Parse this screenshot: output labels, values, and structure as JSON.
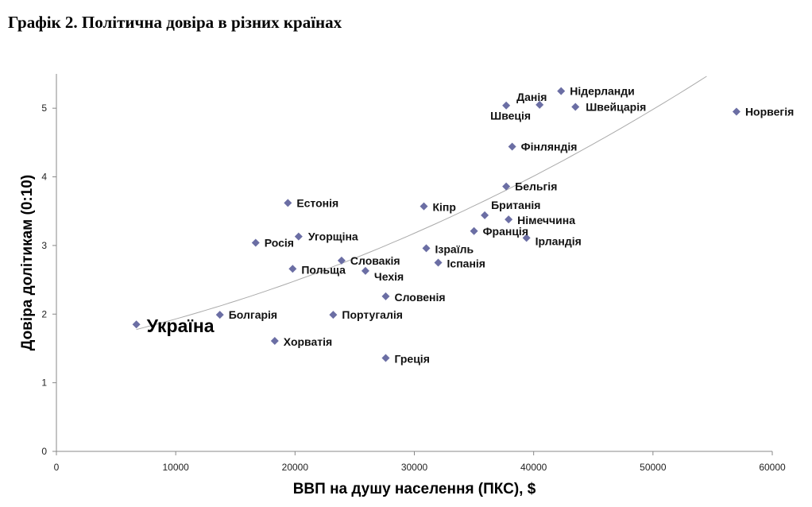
{
  "title": "Графік 2. Політична довіра в різних країнах",
  "chart_data": {
    "type": "scatter",
    "xlabel": "ВВП на душу населення (ПКС), $",
    "ylabel": "Довіра долітикам (0:10)",
    "xlim": [
      0,
      60000
    ],
    "ylim": [
      0,
      5.5
    ],
    "x_ticks": [
      "0",
      "10000",
      "20000",
      "30000",
      "40000",
      "50000",
      "60000"
    ],
    "y_ticks": [
      "0",
      "1",
      "2",
      "3",
      "4",
      "5"
    ],
    "marker_color": "#6b6ea4",
    "trendline": {
      "type": "polynomial",
      "color": "#aaaaaa",
      "x_range": [
        6700,
        54500
      ]
    },
    "points": [
      {
        "label": "Україна",
        "x": 6700,
        "y": 1.85,
        "emphasis": true
      },
      {
        "label": "Болгарія",
        "x": 13700,
        "y": 1.99
      },
      {
        "label": "Хорватія",
        "x": 18300,
        "y": 1.61
      },
      {
        "label": "Росія",
        "x": 16700,
        "y": 3.04
      },
      {
        "label": "Естонія",
        "x": 19400,
        "y": 3.62
      },
      {
        "label": "Угорщіна",
        "x": 20300,
        "y": 3.13
      },
      {
        "label": "Польща",
        "x": 19800,
        "y": 2.66
      },
      {
        "label": "Словакія",
        "x": 23900,
        "y": 2.78
      },
      {
        "label": "Чехія",
        "x": 25900,
        "y": 2.63
      },
      {
        "label": "Португалія",
        "x": 23200,
        "y": 1.99
      },
      {
        "label": "Словенія",
        "x": 27600,
        "y": 2.26
      },
      {
        "label": "Греція",
        "x": 27600,
        "y": 1.36
      },
      {
        "label": "Кіпр",
        "x": 30800,
        "y": 3.57
      },
      {
        "label": "Ізраїль",
        "x": 31000,
        "y": 2.96
      },
      {
        "label": "Іспанія",
        "x": 32000,
        "y": 2.75
      },
      {
        "label": "Франція",
        "x": 35000,
        "y": 3.21
      },
      {
        "label": "Британія",
        "x": 35900,
        "y": 3.44
      },
      {
        "label": "Німеччина",
        "x": 37900,
        "y": 3.38
      },
      {
        "label": "Ірландія",
        "x": 39400,
        "y": 3.11
      },
      {
        "label": "Бельгія",
        "x": 37700,
        "y": 3.86
      },
      {
        "label": "Фінляндія",
        "x": 38200,
        "y": 4.44
      },
      {
        "label": "Данія",
        "x": 40500,
        "y": 5.05
      },
      {
        "label": "Швеція",
        "x": 37700,
        "y": 5.04
      },
      {
        "label": "Нідерланди",
        "x": 42300,
        "y": 5.25
      },
      {
        "label": "Швейцарія",
        "x": 43500,
        "y": 5.02
      },
      {
        "label": "Норвегія",
        "x": 57000,
        "y": 4.95
      }
    ]
  }
}
